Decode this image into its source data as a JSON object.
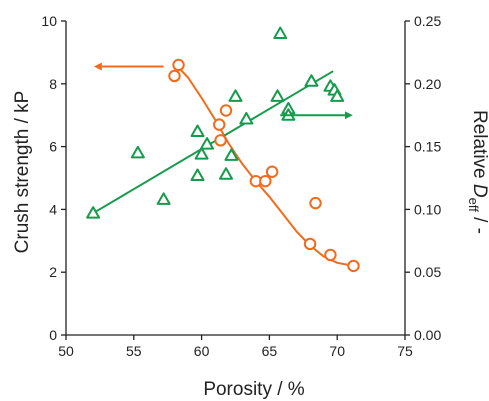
{
  "chart_data": {
    "type": "scatter",
    "xlabel": "Porosity / %",
    "ylabel_left": "Crush strength / kP",
    "ylabel_right": {
      "prefix": "Relative ",
      "main": "D",
      "sub": "eff",
      "suffix": " /  -"
    },
    "xlim": [
      50,
      75
    ],
    "ylim_left": [
      0,
      10
    ],
    "ylim_right": [
      0,
      0.25
    ],
    "x_ticks": [
      50,
      55,
      60,
      65,
      70,
      75
    ],
    "y_left_ticks": [
      0,
      2,
      4,
      6,
      8,
      10
    ],
    "y_right_ticks": [
      "0.00",
      "0.05",
      "0.10",
      "0.15",
      "0.20",
      "0.25"
    ],
    "grid": false,
    "series": [
      {
        "axis": "left",
        "marker": "circle",
        "color": "#f26b1d",
        "points": [
          [
            58.0,
            8.25
          ],
          [
            58.3,
            8.6
          ],
          [
            61.3,
            6.7
          ],
          [
            61.4,
            6.2
          ],
          [
            61.8,
            7.15
          ],
          [
            64.0,
            4.9
          ],
          [
            64.7,
            4.9
          ],
          [
            65.2,
            5.2
          ],
          [
            68.0,
            2.9
          ],
          [
            68.4,
            4.2
          ],
          [
            69.5,
            2.55
          ],
          [
            71.2,
            2.2
          ]
        ],
        "fit": [
          [
            58.0,
            8.65
          ],
          [
            59.0,
            8.2
          ],
          [
            60.0,
            7.55
          ],
          [
            61.0,
            6.85
          ],
          [
            62.0,
            6.1
          ],
          [
            63.0,
            5.45
          ],
          [
            64.0,
            4.9
          ],
          [
            65.0,
            4.4
          ],
          [
            66.0,
            3.85
          ],
          [
            67.0,
            3.3
          ],
          [
            68.0,
            2.85
          ],
          [
            69.0,
            2.5
          ],
          [
            70.0,
            2.3
          ],
          [
            71.2,
            2.2
          ]
        ]
      },
      {
        "axis": "right",
        "marker": "triangle",
        "color": "#169b4c",
        "points": [
          [
            52.0,
            0.097
          ],
          [
            55.3,
            0.145
          ],
          [
            57.2,
            0.108
          ],
          [
            59.7,
            0.127
          ],
          [
            59.7,
            0.162
          ],
          [
            60.0,
            0.144
          ],
          [
            60.4,
            0.152
          ],
          [
            61.8,
            0.128
          ],
          [
            62.2,
            0.143
          ],
          [
            62.5,
            0.19
          ],
          [
            63.3,
            0.172
          ],
          [
            65.6,
            0.19
          ],
          [
            65.8,
            0.24
          ],
          [
            66.4,
            0.18
          ],
          [
            66.4,
            0.175
          ],
          [
            68.1,
            0.202
          ],
          [
            69.5,
            0.198
          ],
          [
            69.8,
            0.195
          ],
          [
            70.0,
            0.19
          ]
        ],
        "fit": [
          [
            52.0,
            0.097
          ],
          [
            69.7,
            0.21
          ]
        ]
      }
    ],
    "annotations": [
      {
        "type": "arrow",
        "direction": "left",
        "color": "#f26b1d",
        "from": [
          57.2,
          8.55
        ],
        "to": [
          52.2,
          8.55
        ]
      },
      {
        "type": "arrow",
        "direction": "right",
        "color": "#169b4c",
        "from": [
          65.8,
          0.175
        ],
        "to": [
          71.0,
          0.175
        ]
      }
    ]
  }
}
